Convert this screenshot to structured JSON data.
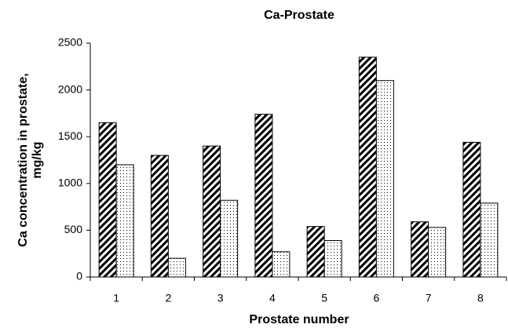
{
  "chart_data": {
    "type": "bar",
    "title": "Ca-Prostate",
    "xlabel": "Prostate number",
    "ylabel": [
      "Ca concentration in prostate,",
      "mg/kg"
    ],
    "categories": [
      "1",
      "2",
      "3",
      "4",
      "5",
      "6",
      "7",
      "8"
    ],
    "series": [
      {
        "color": "#000000",
        "pattern": "diagonal",
        "values": [
          1650,
          1300,
          1400,
          1740,
          540,
          2350,
          590,
          1440
        ]
      },
      {
        "color": "#000000",
        "pattern": "dots",
        "values": [
          1200,
          200,
          820,
          270,
          390,
          2100,
          530,
          790
        ]
      }
    ],
    "ylim": [
      0,
      2500
    ],
    "yticks": [
      0,
      500,
      1000,
      1500,
      2000,
      2500
    ],
    "grid": false
  }
}
